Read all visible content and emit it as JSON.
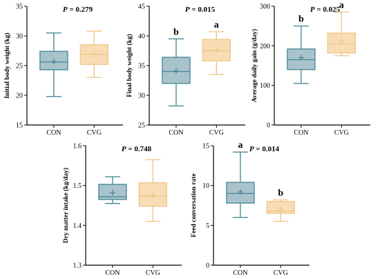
{
  "colors": {
    "CON": {
      "fill": "#a9c3cc",
      "stroke": "#4b8a9a"
    },
    "CVG": {
      "fill": "#f8dcb4",
      "stroke": "#efc78d"
    },
    "axis": "#000000"
  },
  "chart_data": [
    {
      "type": "box",
      "ylabel": "Initial body weight (kg)",
      "annotation": "P = 0.279",
      "yticks": [
        15,
        20,
        25,
        30,
        35
      ],
      "ylim": [
        15,
        35
      ],
      "categories": [
        "CON",
        "CVG"
      ],
      "boxes": [
        {
          "name": "CON",
          "min": 19.8,
          "q1": 24.3,
          "median": 25.6,
          "q3": 27.4,
          "max": 30.5,
          "mean": 25.7,
          "letter": ""
        },
        {
          "name": "CVG",
          "min": 23.0,
          "q1": 25.2,
          "median": 26.9,
          "q3": 28.5,
          "max": 30.8,
          "mean": 26.9,
          "letter": ""
        }
      ]
    },
    {
      "type": "box",
      "ylabel": "Final body weight (kg)",
      "annotation": "P = 0.015",
      "yticks": [
        25,
        30,
        35,
        40,
        45
      ],
      "ylim": [
        25,
        45
      ],
      "categories": [
        "CON",
        "CVG"
      ],
      "boxes": [
        {
          "name": "CON",
          "min": 28.2,
          "q1": 32.0,
          "median": 34.0,
          "q3": 36.4,
          "max": 39.5,
          "mean": 34.1,
          "letter": "b"
        },
        {
          "name": "CVG",
          "min": 33.5,
          "q1": 35.8,
          "median": 37.5,
          "q3": 39.4,
          "max": 40.7,
          "mean": 37.6,
          "letter": "a"
        }
      ]
    },
    {
      "type": "box",
      "ylabel": "Average daily gain (g/day)",
      "annotation": "P = 0.025",
      "yticks": [
        0,
        100,
        200,
        300
      ],
      "ylim": [
        0,
        300
      ],
      "categories": [
        "CON",
        "CVG"
      ],
      "boxes": [
        {
          "name": "CON",
          "min": 105,
          "q1": 140,
          "median": 165,
          "q3": 192,
          "max": 250,
          "mean": 170,
          "letter": "b"
        },
        {
          "name": "CVG",
          "min": 175,
          "q1": 182,
          "median": 205,
          "q3": 232,
          "max": 285,
          "mean": 212,
          "letter": "a"
        }
      ]
    },
    {
      "type": "box",
      "ylabel": "Dry matter intake (kg/day)",
      "annotation": "P = 0.748",
      "yticks": [
        1.3,
        1.4,
        1.5,
        1.6
      ],
      "ylim": [
        1.3,
        1.6
      ],
      "categories": [
        "CON",
        "CVG"
      ],
      "boxes": [
        {
          "name": "CON",
          "min": 1.455,
          "q1": 1.465,
          "median": 1.472,
          "q3": 1.503,
          "max": 1.522,
          "mean": 1.482,
          "letter": ""
        },
        {
          "name": "CVG",
          "min": 1.41,
          "q1": 1.448,
          "median": 1.473,
          "q3": 1.507,
          "max": 1.565,
          "mean": 1.476,
          "letter": ""
        }
      ]
    },
    {
      "type": "box",
      "ylabel": "Feed conversation rate",
      "annotation": "P = 0.014",
      "yticks": [
        0,
        5,
        10,
        15
      ],
      "ylim": [
        0,
        15
      ],
      "categories": [
        "CON",
        "CVG"
      ],
      "boxes": [
        {
          "name": "CON",
          "min": 6.0,
          "q1": 7.8,
          "median": 9.0,
          "q3": 10.4,
          "max": 14.2,
          "mean": 9.2,
          "letter": "a"
        },
        {
          "name": "CVG",
          "min": 5.5,
          "q1": 6.5,
          "median": 6.8,
          "q3": 8.0,
          "max": 8.2,
          "mean": 7.0,
          "letter": "b"
        }
      ]
    }
  ]
}
